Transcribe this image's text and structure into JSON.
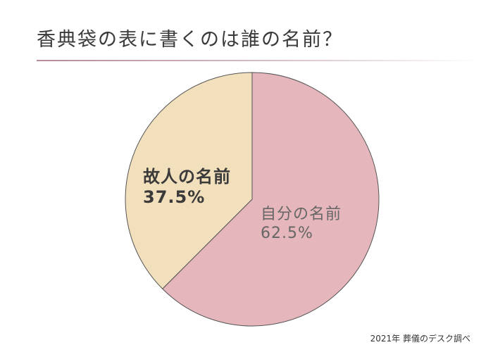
{
  "header": {
    "title": "香典袋の表に書くのは誰の名前？"
  },
  "chart_data": {
    "type": "pie",
    "categories": [
      "自分の名前",
      "故人の名前"
    ],
    "values": [
      62.5,
      37.5
    ],
    "value_labels": [
      "62.5%",
      "37.5%"
    ],
    "colors": [
      "#e5b6bb",
      "#f2dfbc"
    ],
    "start": "12 o'clock",
    "direction": "clockwise"
  },
  "footer": {
    "source": "2021年 葬儀のデスク調べ"
  }
}
